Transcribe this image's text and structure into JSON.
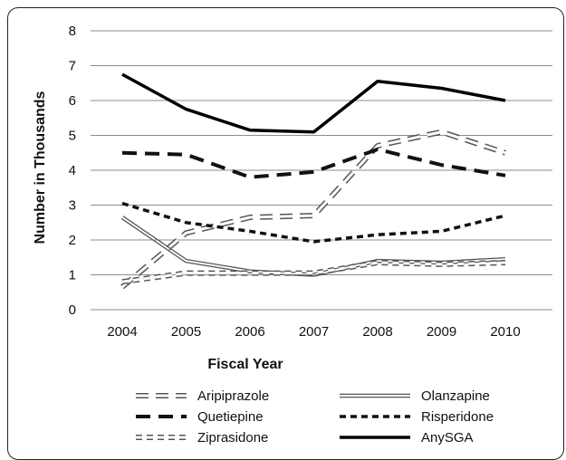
{
  "chart_data": {
    "type": "line",
    "title": "",
    "xlabel": "Fiscal Year",
    "ylabel": "Number in Thousands",
    "x": [
      "2004",
      "2005",
      "2006",
      "2007",
      "2008",
      "2009",
      "2010"
    ],
    "ylim": [
      0,
      8
    ],
    "yticks": [
      "0",
      "1",
      "2",
      "3",
      "4",
      "5",
      "6",
      "7",
      "8"
    ],
    "grid": true,
    "legend_position": "bottom",
    "series": [
      {
        "name": "Aripiprazole",
        "values": [
          0.65,
          2.2,
          2.65,
          2.7,
          4.7,
          5.1,
          4.5
        ],
        "style": "aripiprazole",
        "color": "#999999"
      },
      {
        "name": "Olanzapine",
        "values": [
          2.65,
          1.4,
          1.1,
          1.0,
          1.4,
          1.35,
          1.45
        ],
        "style": "olanzapine",
        "color": "#555555"
      },
      {
        "name": "Quetiepine",
        "values": [
          4.5,
          4.45,
          3.8,
          3.95,
          4.6,
          4.15,
          3.85
        ],
        "style": "quetiepine",
        "color": "#111111"
      },
      {
        "name": "Risperidone",
        "values": [
          3.05,
          2.5,
          2.25,
          1.95,
          2.15,
          2.25,
          2.7
        ],
        "style": "risperidone",
        "color": "#111111"
      },
      {
        "name": "Ziprasidone",
        "values": [
          0.8,
          1.05,
          1.05,
          1.05,
          1.35,
          1.3,
          1.35
        ],
        "style": "ziprasidone",
        "color": "#777777"
      },
      {
        "name": "AnySGA",
        "values": [
          6.75,
          5.75,
          5.15,
          5.1,
          6.55,
          6.35,
          6.0
        ],
        "style": "anysga",
        "color": "#000000"
      }
    ]
  }
}
